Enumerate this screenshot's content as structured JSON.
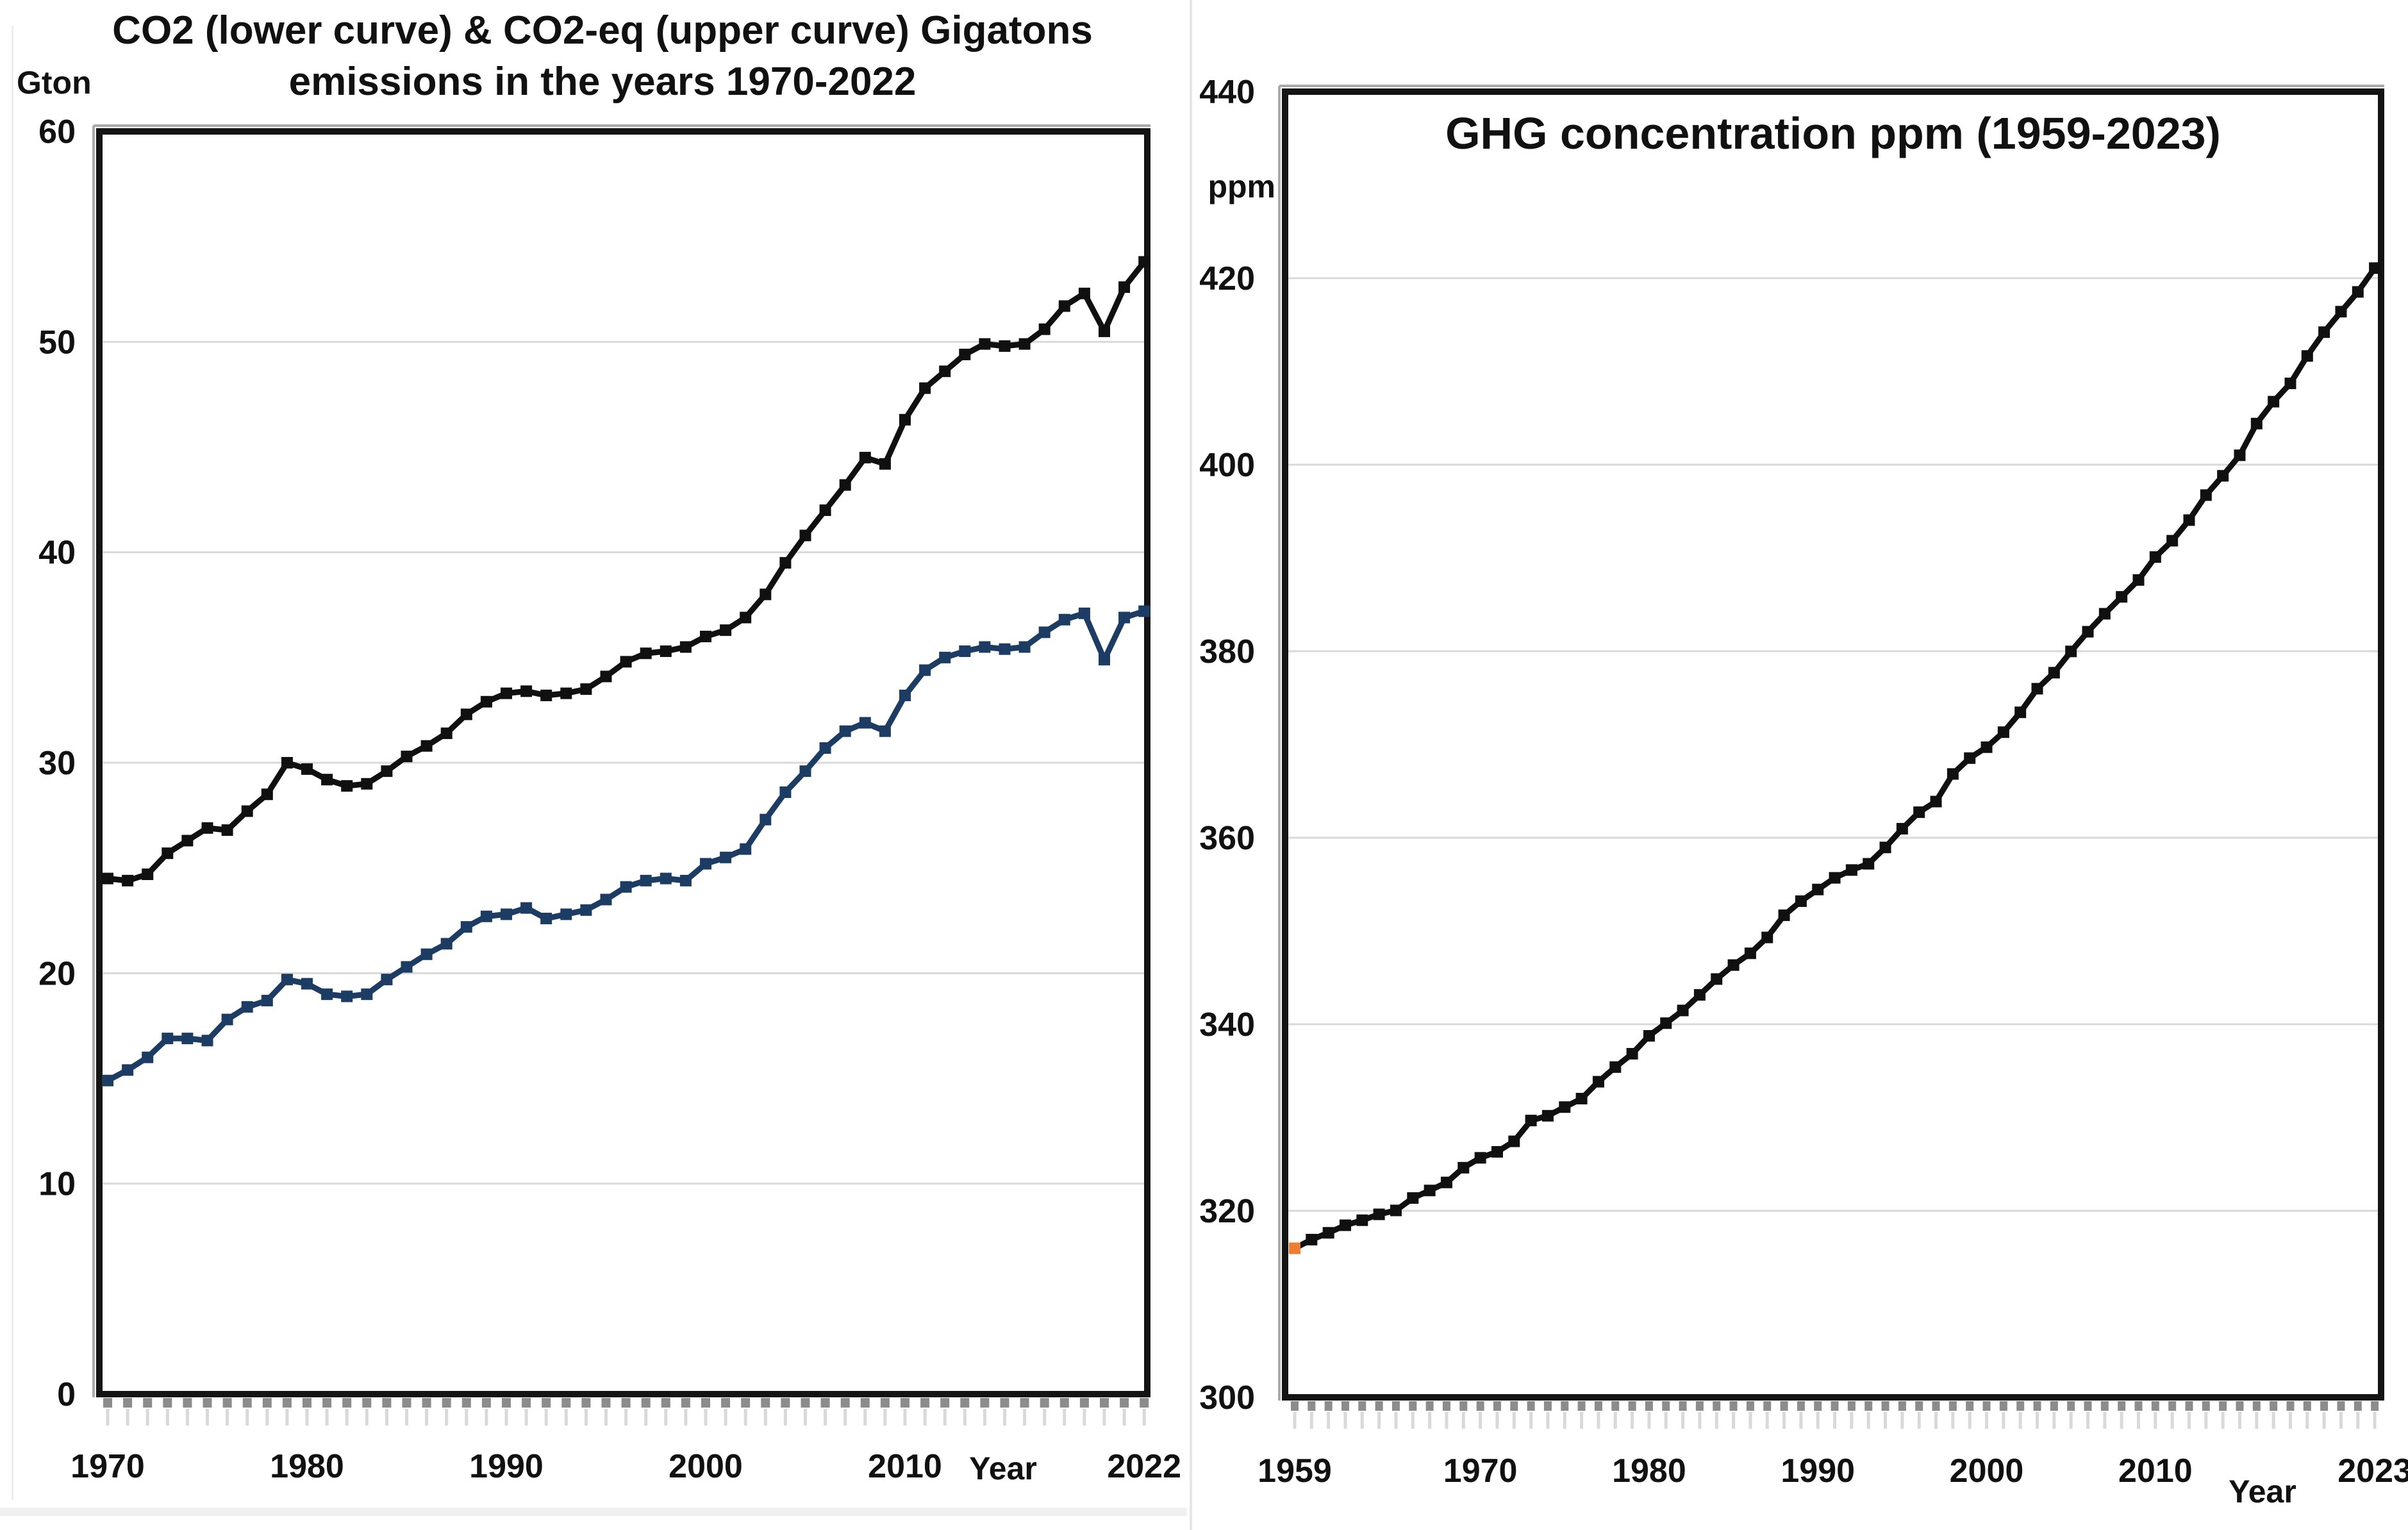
{
  "page": {
    "background": "#ffffff",
    "divider_color": "#e6e6e6",
    "grid_color": "#d9d9d9",
    "frame_color": "#141414",
    "minor_tick_color": "#8c8c8c",
    "minor_tick_light_color": "#d9d9d9"
  },
  "chart_data": [
    {
      "type": "line",
      "panel": "left",
      "title": "CO2 (lower curve) & CO2-eq (upper curve) Gigatons",
      "subtitle": "emissions in the years 1970-2022",
      "ylabel": "Gton",
      "xlabel": "Year",
      "x_start": 1970,
      "x_end": 2022,
      "x_step": 1,
      "ylim": [
        0,
        60
      ],
      "y_ticks": [
        0,
        10,
        20,
        30,
        40,
        50,
        60
      ],
      "x_ticks": [
        {
          "year": 1970,
          "label": "1970"
        },
        {
          "year": 1980,
          "label": "1980"
        },
        {
          "year": 1990,
          "label": "1990"
        },
        {
          "year": 2000,
          "label": "2000"
        },
        {
          "year": 2010,
          "label": "2010"
        },
        {
          "year": 2022,
          "label": "2022"
        }
      ],
      "grid": "horizontal-light",
      "legend": "none",
      "marker": "square",
      "series": [
        {
          "name": "CO2-eq (upper curve)",
          "color": "#101010",
          "values": [
            24.5,
            24.4,
            24.7,
            25.7,
            26.3,
            26.9,
            26.8,
            27.7,
            28.5,
            30.0,
            29.7,
            29.2,
            28.9,
            29.0,
            29.6,
            30.3,
            30.8,
            31.4,
            32.3,
            32.9,
            33.3,
            33.4,
            33.2,
            33.3,
            33.5,
            34.1,
            34.8,
            35.2,
            35.3,
            35.5,
            36.0,
            36.3,
            36.9,
            38.0,
            39.5,
            40.8,
            42.0,
            43.2,
            44.5,
            44.2,
            46.3,
            47.8,
            48.6,
            49.4,
            49.9,
            49.8,
            49.9,
            50.6,
            51.7,
            52.3,
            50.5,
            52.6,
            53.8
          ]
        },
        {
          "name": "CO2 (lower curve)",
          "color": "#1c3c64",
          "values": [
            14.9,
            15.4,
            16.0,
            16.9,
            16.9,
            16.8,
            17.8,
            18.4,
            18.7,
            19.7,
            19.5,
            19.0,
            18.9,
            19.0,
            19.7,
            20.3,
            20.9,
            21.4,
            22.2,
            22.7,
            22.8,
            23.1,
            22.6,
            22.8,
            23.0,
            23.5,
            24.1,
            24.4,
            24.5,
            24.4,
            25.2,
            25.5,
            25.9,
            27.3,
            28.6,
            29.6,
            30.7,
            31.5,
            31.9,
            31.5,
            33.2,
            34.4,
            35.0,
            35.3,
            35.5,
            35.4,
            35.5,
            36.2,
            36.8,
            37.1,
            34.9,
            36.9,
            37.2
          ]
        }
      ]
    },
    {
      "type": "line",
      "panel": "right",
      "title": "GHG concentration ppm (1959-2023)",
      "ylabel": "ppm",
      "xlabel": "Year",
      "x_start": 1959,
      "x_end": 2023,
      "x_step": 1,
      "ylim": [
        300,
        440
      ],
      "y_ticks": [
        300,
        320,
        340,
        360,
        380,
        400,
        420,
        440
      ],
      "x_ticks": [
        {
          "year": 1959,
          "label": "1959"
        },
        {
          "year": 1970,
          "label": "1970"
        },
        {
          "year": 1980,
          "label": "1980"
        },
        {
          "year": 1990,
          "label": "1990"
        },
        {
          "year": 2000,
          "label": "2000"
        },
        {
          "year": 2010,
          "label": "2010"
        },
        {
          "year": 2023,
          "label": "2023"
        }
      ],
      "grid": "horizontal-light",
      "legend": "none",
      "marker": "square",
      "series": [
        {
          "name": "GHG concentration",
          "color": "#101010",
          "first_point_color": "#ED7D31",
          "values": [
            315.98,
            316.91,
            317.64,
            318.45,
            318.99,
            319.62,
            320.04,
            321.37,
            322.18,
            323.04,
            324.62,
            325.68,
            326.32,
            327.45,
            329.68,
            330.19,
            331.12,
            332.03,
            333.84,
            335.41,
            336.84,
            338.76,
            340.12,
            341.48,
            343.15,
            344.85,
            346.35,
            347.61,
            349.31,
            351.69,
            353.2,
            354.45,
            355.7,
            356.54,
            357.21,
            358.96,
            360.97,
            362.74,
            363.88,
            366.84,
            368.54,
            369.71,
            371.32,
            373.45,
            375.98,
            377.7,
            379.98,
            382.09,
            384.02,
            385.83,
            387.64,
            390.1,
            391.85,
            394.06,
            396.74,
            398.81,
            401.01,
            404.41,
            406.76,
            408.72,
            411.66,
            414.21,
            416.41,
            418.53,
            421.08
          ]
        }
      ]
    }
  ]
}
